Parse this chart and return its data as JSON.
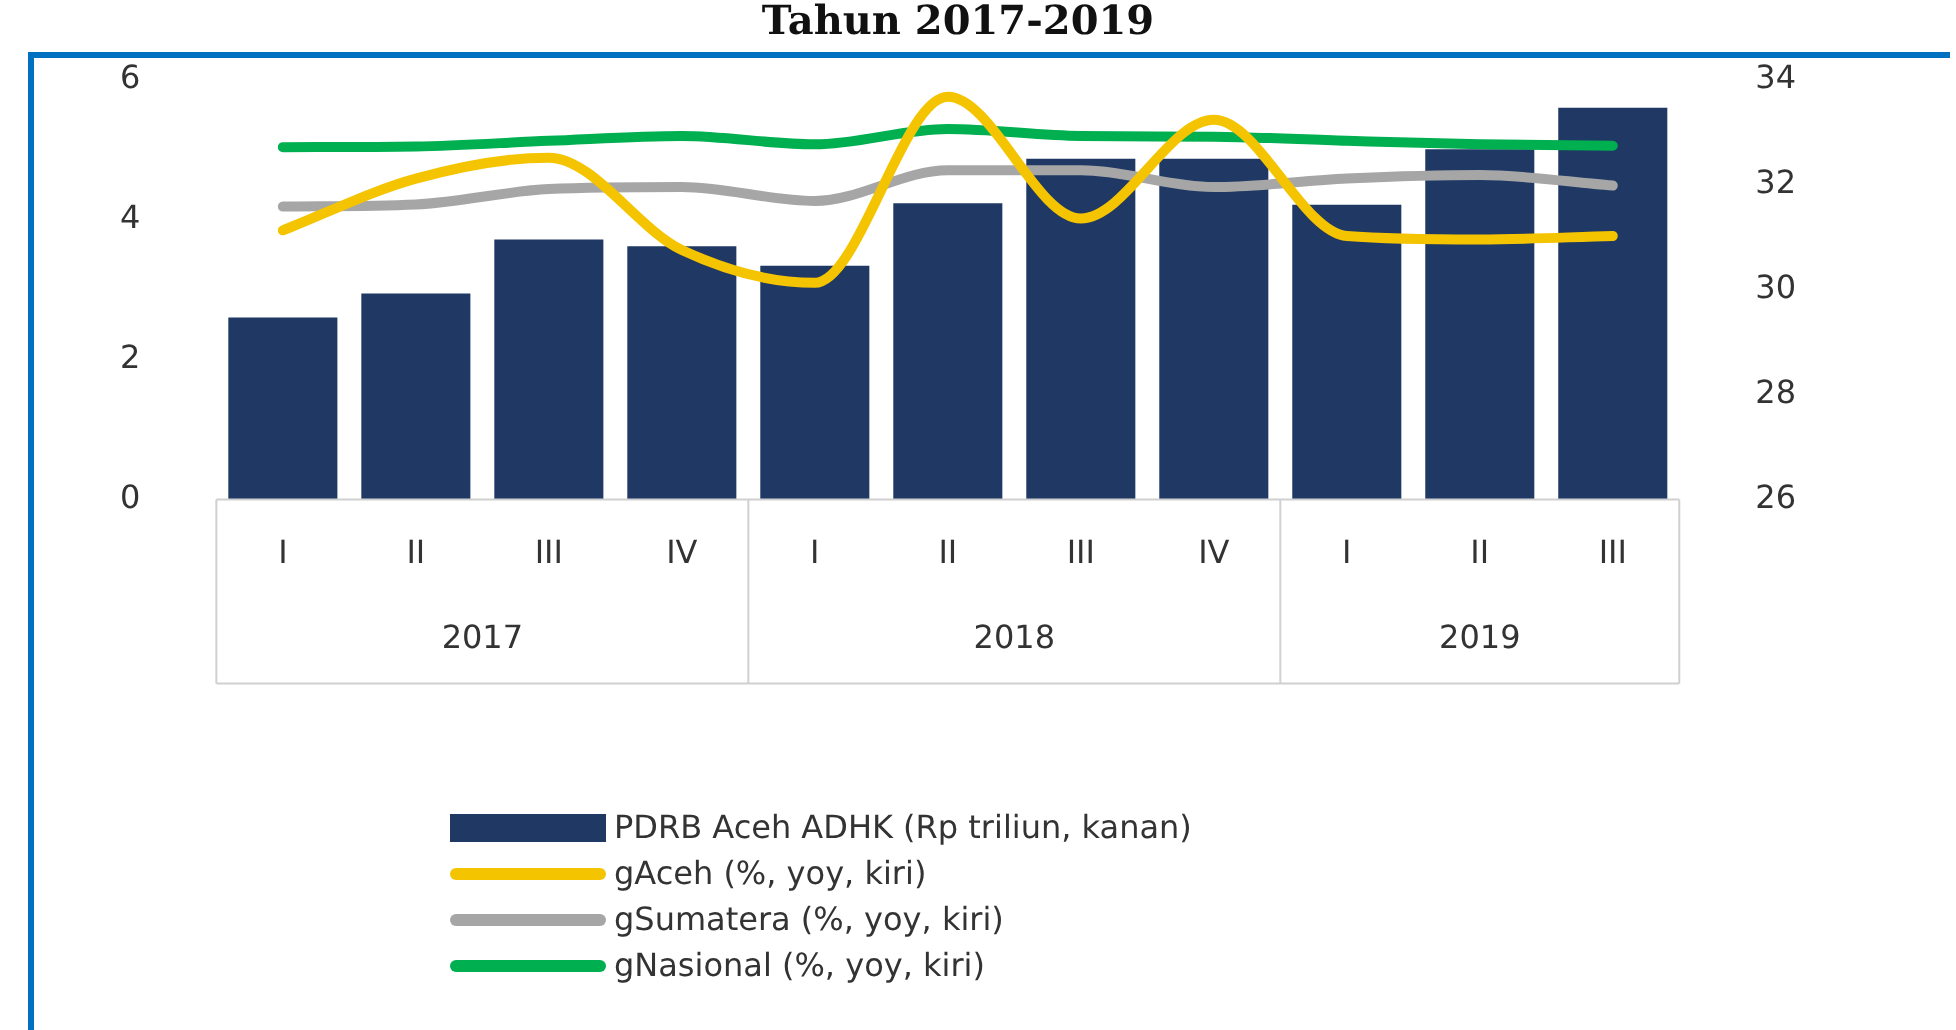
{
  "chart_data": {
    "type": "bar",
    "title": "Tahun 2017-2019",
    "categories": [
      "I",
      "II",
      "III",
      "IV",
      "I",
      "II",
      "III",
      "IV",
      "I",
      "II",
      "III"
    ],
    "annotations": [
      "2017",
      "2018",
      "2019"
    ],
    "series": [
      {
        "name": "PDRB Aceh ADHK (Rp triliun, kanan)",
        "axis": "y2",
        "color": "#1f3864",
        "values": [
          29.47,
          29.93,
          30.96,
          30.83,
          30.46,
          31.65,
          32.5,
          32.5,
          31.62,
          32.68,
          33.47
        ]
      },
      {
        "name": "gAceh (%, yoy, kiri)",
        "type": "line",
        "color": "#f5c400",
        "values": [
          3.85,
          4.59,
          4.89,
          3.57,
          3.1,
          5.76,
          4.02,
          5.43,
          3.77,
          3.72,
          3.77
        ]
      },
      {
        "name": "gSumatera (%, yoy, kiri)",
        "type": "line",
        "color": "#a6a6a6",
        "values": [
          4.19,
          4.22,
          4.44,
          4.47,
          4.27,
          4.71,
          4.71,
          4.47,
          4.59,
          4.64,
          4.49
        ]
      },
      {
        "name": "gNasional (%, yoy, kiri)",
        "type": "line",
        "color": "#00b050",
        "values": [
          5.04,
          5.05,
          5.13,
          5.2,
          5.08,
          5.3,
          5.2,
          5.19,
          5.13,
          5.08,
          5.06
        ]
      }
    ],
    "ylim": [
      0,
      6
    ],
    "yticks": [
      0,
      2,
      4,
      6
    ],
    "y2lim": [
      26,
      34
    ],
    "y2ticks": [
      26,
      28,
      30,
      32,
      34
    ],
    "grid": false,
    "legend": "bottom",
    "marker": "none",
    "line_style": "solid"
  }
}
